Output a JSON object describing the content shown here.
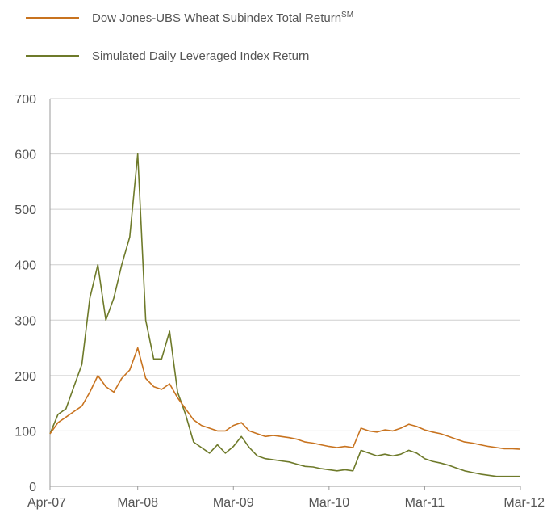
{
  "chart_data": {
    "type": "line",
    "title": "",
    "xlabel": "",
    "ylabel": "",
    "ylim": [
      0,
      700
    ],
    "grid": true,
    "legend_position": "top-left",
    "x_tick_labels": [
      "Apr-07",
      "Mar-08",
      "Mar-09",
      "Mar-10",
      "Mar-11",
      "Mar-12"
    ],
    "y_tick_labels": [
      "0",
      "100",
      "200",
      "300",
      "400",
      "500",
      "600",
      "700"
    ],
    "series": [
      {
        "name": "Dow Jones-UBS Wheat Subindex Total Return",
        "name_superscript": "SM",
        "color": "#c8731f",
        "x": [
          "2007-04",
          "2007-05",
          "2007-06",
          "2007-07",
          "2007-08",
          "2007-09",
          "2007-10",
          "2007-11",
          "2007-12",
          "2008-01",
          "2008-02",
          "2008-03",
          "2008-04",
          "2008-05",
          "2008-06",
          "2008-07",
          "2008-08",
          "2008-09",
          "2008-10",
          "2008-11",
          "2008-12",
          "2009-01",
          "2009-02",
          "2009-03",
          "2009-04",
          "2009-05",
          "2009-06",
          "2009-07",
          "2009-08",
          "2009-09",
          "2009-10",
          "2009-11",
          "2009-12",
          "2010-01",
          "2010-02",
          "2010-03",
          "2010-04",
          "2010-05",
          "2010-06",
          "2010-07",
          "2010-08",
          "2010-09",
          "2010-10",
          "2010-11",
          "2010-12",
          "2011-01",
          "2011-02",
          "2011-03",
          "2011-04",
          "2011-05",
          "2011-06",
          "2011-07",
          "2011-08",
          "2011-09",
          "2011-10",
          "2011-11",
          "2011-12",
          "2012-01",
          "2012-02",
          "2012-03"
        ],
        "values": [
          95,
          115,
          125,
          135,
          145,
          170,
          200,
          180,
          170,
          195,
          210,
          250,
          195,
          180,
          175,
          185,
          160,
          140,
          120,
          110,
          105,
          100,
          100,
          110,
          115,
          100,
          95,
          90,
          92,
          90,
          88,
          85,
          80,
          78,
          75,
          72,
          70,
          72,
          70,
          105,
          100,
          98,
          102,
          100,
          105,
          112,
          108,
          102,
          98,
          95,
          90,
          85,
          80,
          78,
          75,
          72,
          70,
          68,
          68,
          67
        ]
      },
      {
        "name": "Simulated Daily Leveraged Index Return",
        "color": "#6e7a2a",
        "x": [
          "2007-04",
          "2007-05",
          "2007-06",
          "2007-07",
          "2007-08",
          "2007-09",
          "2007-10",
          "2007-11",
          "2007-12",
          "2008-01",
          "2008-02",
          "2008-03",
          "2008-04",
          "2008-05",
          "2008-06",
          "2008-07",
          "2008-08",
          "2008-09",
          "2008-10",
          "2008-11",
          "2008-12",
          "2009-01",
          "2009-02",
          "2009-03",
          "2009-04",
          "2009-05",
          "2009-06",
          "2009-07",
          "2009-08",
          "2009-09",
          "2009-10",
          "2009-11",
          "2009-12",
          "2010-01",
          "2010-02",
          "2010-03",
          "2010-04",
          "2010-05",
          "2010-06",
          "2010-07",
          "2010-08",
          "2010-09",
          "2010-10",
          "2010-11",
          "2010-12",
          "2011-01",
          "2011-02",
          "2011-03",
          "2011-04",
          "2011-05",
          "2011-06",
          "2011-07",
          "2011-08",
          "2011-09",
          "2011-10",
          "2011-11",
          "2011-12",
          "2012-01",
          "2012-02",
          "2012-03"
        ],
        "values": [
          95,
          130,
          140,
          180,
          220,
          340,
          400,
          300,
          340,
          400,
          450,
          600,
          300,
          230,
          230,
          280,
          170,
          130,
          80,
          70,
          60,
          75,
          60,
          72,
          90,
          70,
          55,
          50,
          48,
          46,
          44,
          40,
          36,
          35,
          32,
          30,
          28,
          30,
          28,
          65,
          60,
          55,
          58,
          55,
          58,
          65,
          60,
          50,
          45,
          42,
          38,
          33,
          28,
          25,
          22,
          20,
          18,
          18,
          18,
          18
        ]
      }
    ]
  }
}
